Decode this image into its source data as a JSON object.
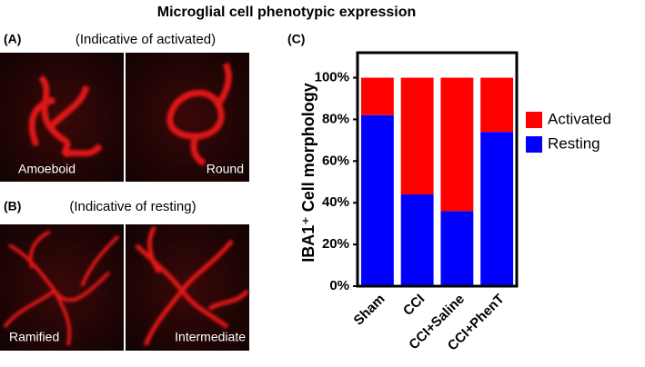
{
  "title": "Microglial cell phenotypic expression",
  "panel_a": {
    "label": "(A)",
    "caption": "(Indicative of activated)",
    "images": [
      "Amoeboid",
      "Round"
    ]
  },
  "panel_b": {
    "label": "(B)",
    "caption": "(Indicative of resting)",
    "images": [
      "Ramified",
      "Intermediate"
    ]
  },
  "chart_data": {
    "type": "stacked_bar",
    "panel_label": "(C)",
    "y_label": "IBA1⁺ Cell morphology",
    "categories": [
      "Sham",
      "CCI",
      "CCI+Saline",
      "CCI+PhenT"
    ],
    "series": [
      {
        "name": "Resting",
        "color": "#0000ff",
        "values": [
          82,
          44,
          36,
          74
        ]
      },
      {
        "name": "Activated",
        "color": "#ff0000",
        "values": [
          18,
          56,
          64,
          26
        ]
      }
    ],
    "ylim": [
      0,
      112
    ],
    "yticks": [
      {
        "value": 0,
        "label": "0%"
      },
      {
        "value": 20,
        "label": "20%"
      },
      {
        "value": 40,
        "label": "40%"
      },
      {
        "value": 60,
        "label": "60%"
      },
      {
        "value": 80,
        "label": "80%"
      },
      {
        "value": 100,
        "label": "100%"
      }
    ]
  }
}
